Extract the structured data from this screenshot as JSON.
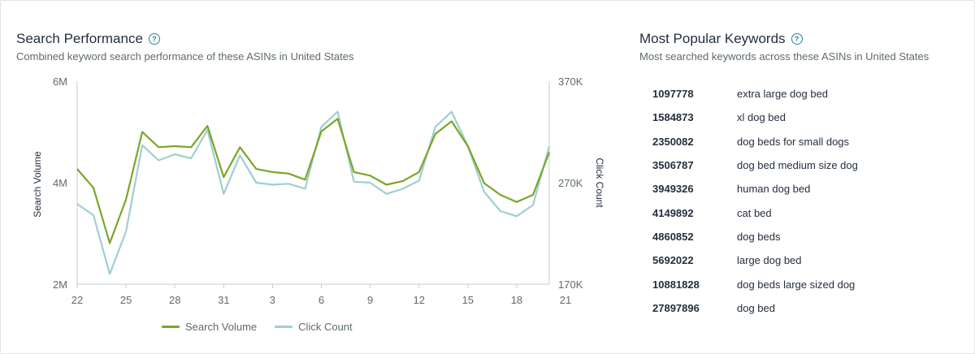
{
  "search_performance": {
    "title": "Search Performance",
    "subtitle": "Combined keyword search performance of these ASINs in United States",
    "help_icon": "question-circle-icon"
  },
  "chart_data": {
    "type": "line",
    "x_ticks": [
      "22",
      "25",
      "28",
      "31",
      "3",
      "6",
      "9",
      "12",
      "15",
      "18",
      "21"
    ],
    "x_points": 30,
    "y_left_label": "Search Volume",
    "y_right_label": "Click Count",
    "y_left_ticks": [
      "6M",
      "4M",
      "2M"
    ],
    "y_right_ticks": [
      "370K",
      "270K",
      "170K"
    ],
    "y_left_range": [
      2000000,
      6000000
    ],
    "y_right_range": [
      170000,
      370000
    ],
    "grid": false,
    "legend_position": "bottom",
    "series": [
      {
        "name": "Search Volume",
        "axis": "left",
        "color": "#7aa629",
        "values": [
          4270000,
          3900000,
          2810000,
          3670000,
          5000000,
          4700000,
          4720000,
          4700000,
          5120000,
          4110000,
          4700000,
          4270000,
          4210000,
          4180000,
          4060000,
          5010000,
          5260000,
          4210000,
          4140000,
          3960000,
          4030000,
          4210000,
          4960000,
          5210000,
          4720000,
          3990000,
          3760000,
          3620000,
          3760000,
          4600000
        ]
      },
      {
        "name": "Click Count",
        "axis": "right",
        "color": "#9fcfd0",
        "values": [
          249000,
          238000,
          180000,
          222000,
          307000,
          292000,
          298000,
          294000,
          322000,
          259000,
          297000,
          270000,
          268000,
          269000,
          264000,
          325000,
          340000,
          271000,
          270000,
          259000,
          264000,
          272000,
          325000,
          340000,
          306000,
          261000,
          242000,
          237000,
          248000,
          306000
        ]
      }
    ]
  },
  "keywords": {
    "title": "Most Popular Keywords",
    "subtitle": "Most searched keywords across these ASINs in United States",
    "help_icon": "question-circle-icon",
    "rows": [
      {
        "id": "1097778",
        "keyword": "extra large dog bed"
      },
      {
        "id": "1584873",
        "keyword": "xl dog bed"
      },
      {
        "id": "2350082",
        "keyword": "dog beds for small dogs"
      },
      {
        "id": "3506787",
        "keyword": "dog bed medium size dog"
      },
      {
        "id": "3949326",
        "keyword": "human dog bed"
      },
      {
        "id": "4149892",
        "keyword": "cat bed"
      },
      {
        "id": "4860852",
        "keyword": "dog beds"
      },
      {
        "id": "5692022",
        "keyword": "large dog bed"
      },
      {
        "id": "10881828",
        "keyword": "dog beds large sized dog"
      },
      {
        "id": "27897896",
        "keyword": "dog bed"
      }
    ]
  }
}
